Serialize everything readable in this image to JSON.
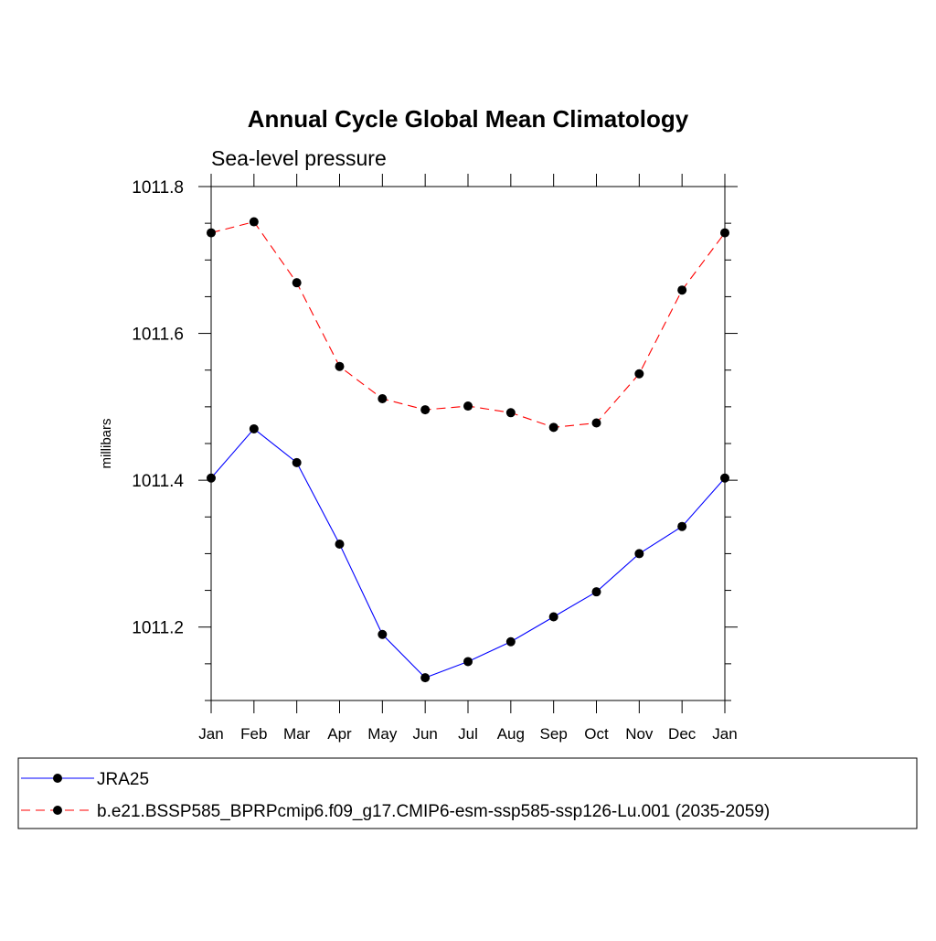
{
  "chart_data": {
    "type": "line",
    "title": "Annual Cycle Global Mean Climatology",
    "subtitle": "Sea-level pressure",
    "xlabel": "",
    "ylabel": "millibars",
    "categories": [
      "Jan",
      "Feb",
      "Mar",
      "Apr",
      "May",
      "Jun",
      "Jul",
      "Aug",
      "Sep",
      "Oct",
      "Nov",
      "Dec",
      "Jan"
    ],
    "ylim": [
      1011.1,
      1011.8
    ],
    "yticks": [
      1011.2,
      1011.4,
      1011.6,
      1011.8
    ],
    "ytick_labels": [
      "1011.2",
      "1011.4",
      "1011.6",
      "1011.8"
    ],
    "y_minor_step": 0.05,
    "grid": false,
    "legend_position": "bottom",
    "series": [
      {
        "name": "JRA25",
        "color": "#0000ff",
        "dash": "solid",
        "marker": "circle",
        "values": [
          1011.403,
          1011.47,
          1011.424,
          1011.313,
          1011.19,
          1011.131,
          1011.153,
          1011.18,
          1011.214,
          1011.248,
          1011.3,
          1011.337,
          1011.403
        ]
      },
      {
        "name": "b.e21.BSSP585_BPRPcmip6.f09_g17.CMIP6-esm-ssp585-ssp126-Lu.001 (2035-2059)",
        "color": "#ff0000",
        "dash": "dashed",
        "marker": "circle",
        "values": [
          1011.737,
          1011.752,
          1011.669,
          1011.555,
          1011.511,
          1011.496,
          1011.501,
          1011.492,
          1011.472,
          1011.478,
          1011.545,
          1011.659,
          1011.737
        ]
      }
    ]
  }
}
